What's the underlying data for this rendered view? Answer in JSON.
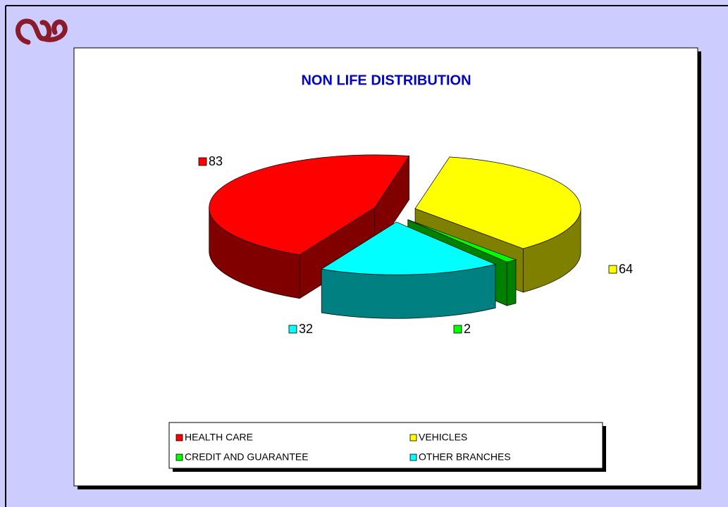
{
  "chart_data": {
    "type": "pie",
    "title": "NON LIFE DISTRIBUTION",
    "categories": [
      "HEALTH CARE",
      "VEHICLES",
      "CREDIT AND GUARANTEE",
      "OTHER BRANCHES"
    ],
    "values": [
      83,
      64,
      2,
      32
    ],
    "colors": [
      "#ff0000",
      "#ffff00",
      "#00ff00",
      "#00ffff"
    ],
    "side_colors": [
      "#800000",
      "#808000",
      "#008000",
      "#008080"
    ]
  }
}
